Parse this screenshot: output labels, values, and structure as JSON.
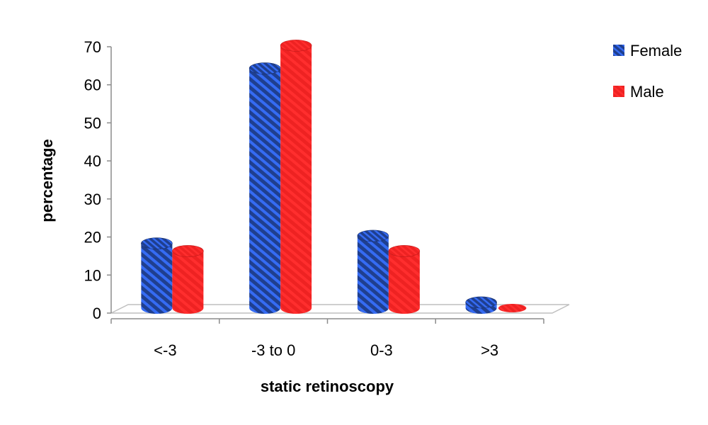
{
  "chart_data": {
    "type": "bar",
    "title": "",
    "xlabel": "static retinoscopy",
    "ylabel": "percentage",
    "ylim": [
      0,
      70
    ],
    "yticks": [
      0,
      10,
      20,
      30,
      40,
      50,
      60,
      70
    ],
    "categories": [
      "<-3",
      "-3 to 0",
      "0-3",
      ">3"
    ],
    "series": [
      {
        "name": "Female",
        "values": [
          17,
          63,
          19,
          1.5
        ],
        "color": "#1f3f8f"
      },
      {
        "name": "Male",
        "values": [
          15,
          69,
          15,
          0
        ],
        "color": "#ee2222"
      }
    ],
    "legend": "right",
    "grid": false,
    "style": "3d-cylinder-hatched"
  }
}
